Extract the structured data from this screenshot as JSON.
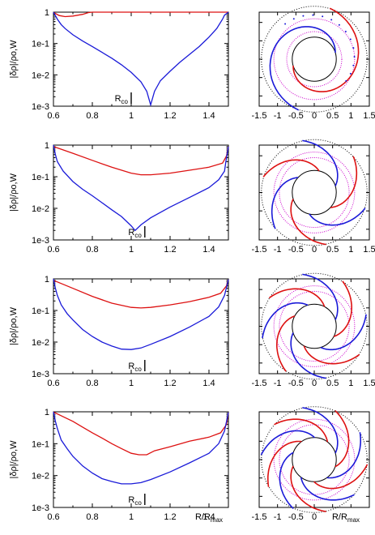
{
  "colors": {
    "red": "#dd1111",
    "blue": "#1a1ad8",
    "magenta": "#cc00cc",
    "black": "#000000",
    "axis": "#000000"
  },
  "chart_data": [
    {
      "type": "line",
      "row": 0,
      "ylabel": "|δρ|/ρo,W",
      "xlabel": "",
      "yscale": "log",
      "xlim": [
        0.6,
        1.5
      ],
      "ylim": [
        0.001,
        1
      ],
      "xticks": [
        "0.6",
        "0.8",
        "1",
        "1.2",
        "1.4"
      ],
      "yticks": [
        "1",
        "1e-1",
        "1e-2",
        "1e-3"
      ],
      "annotation": {
        "text": "R",
        "sub": "co",
        "x": 1.0
      },
      "series": [
        {
          "color": "red",
          "x": [
            0.6,
            0.63,
            0.66,
            0.7,
            0.75,
            0.78,
            0.8,
            0.85,
            0.9,
            1.0,
            1.1,
            1.2,
            1.3,
            1.4,
            1.5
          ],
          "y": [
            0.98,
            0.78,
            0.72,
            0.75,
            0.85,
            0.97,
            1.0,
            1.0,
            1.0,
            1.0,
            1.0,
            1.0,
            1.0,
            1.0,
            1.0
          ]
        },
        {
          "color": "blue",
          "x": [
            0.6,
            0.62,
            0.64,
            0.66,
            0.7,
            0.75,
            0.8,
            0.85,
            0.9,
            0.95,
            1.0,
            1.05,
            1.08,
            1.1,
            1.12,
            1.15,
            1.2,
            1.25,
            1.3,
            1.35,
            1.4,
            1.44,
            1.47,
            1.48,
            1.5
          ],
          "y": [
            1.0,
            0.6,
            0.4,
            0.3,
            0.19,
            0.12,
            0.08,
            0.052,
            0.034,
            0.021,
            0.012,
            0.006,
            0.003,
            0.0011,
            0.003,
            0.0065,
            0.013,
            0.025,
            0.045,
            0.08,
            0.16,
            0.3,
            0.6,
            0.8,
            1.0
          ]
        }
      ]
    },
    {
      "type": "line",
      "row": 1,
      "ylabel": "|δρ|/ρo,W",
      "xlabel": "",
      "yscale": "log",
      "xlim": [
        0.6,
        1.5
      ],
      "ylim": [
        0.001,
        1
      ],
      "xticks": [
        "0.6",
        "0.8",
        "1",
        "1.2",
        "1.4"
      ],
      "yticks": [
        "1",
        "1e-1",
        "1e-2",
        "1e-3"
      ],
      "annotation": {
        "text": "R",
        "sub": "co",
        "x": 1.07
      },
      "series": [
        {
          "color": "red",
          "x": [
            0.6,
            0.7,
            0.8,
            0.9,
            1.0,
            1.05,
            1.1,
            1.2,
            1.3,
            1.4,
            1.47,
            1.49,
            1.5
          ],
          "y": [
            0.9,
            0.55,
            0.33,
            0.2,
            0.13,
            0.115,
            0.115,
            0.13,
            0.16,
            0.2,
            0.27,
            0.45,
            0.9
          ]
        },
        {
          "color": "blue",
          "x": [
            0.6,
            0.61,
            0.62,
            0.65,
            0.7,
            0.75,
            0.8,
            0.85,
            0.9,
            0.95,
            1.0,
            1.02,
            1.05,
            1.1,
            1.2,
            1.3,
            1.4,
            1.45,
            1.48,
            1.49,
            1.5
          ],
          "y": [
            1.0,
            0.5,
            0.3,
            0.15,
            0.07,
            0.04,
            0.025,
            0.015,
            0.009,
            0.0055,
            0.0028,
            0.002,
            0.003,
            0.005,
            0.011,
            0.022,
            0.045,
            0.08,
            0.15,
            0.4,
            0.9
          ]
        }
      ]
    },
    {
      "type": "line",
      "row": 2,
      "ylabel": "|δρ|/ρo,W",
      "xlabel": "",
      "yscale": "log",
      "xlim": [
        0.6,
        1.5
      ],
      "ylim": [
        0.001,
        1
      ],
      "xticks": [
        "0.6",
        "0.8",
        "1",
        "1.2",
        "1.4"
      ],
      "yticks": [
        "1",
        "1e-1",
        "1e-2",
        "1e-3"
      ],
      "annotation": {
        "text": "R",
        "sub": "co",
        "x": 1.07
      },
      "series": [
        {
          "color": "red",
          "x": [
            0.6,
            0.7,
            0.8,
            0.9,
            1.0,
            1.05,
            1.1,
            1.2,
            1.3,
            1.4,
            1.46,
            1.49,
            1.5
          ],
          "y": [
            0.9,
            0.5,
            0.28,
            0.17,
            0.125,
            0.12,
            0.125,
            0.15,
            0.19,
            0.26,
            0.35,
            0.6,
            0.95
          ]
        },
        {
          "color": "blue",
          "x": [
            0.6,
            0.61,
            0.62,
            0.64,
            0.67,
            0.7,
            0.75,
            0.8,
            0.85,
            0.9,
            0.95,
            1.0,
            1.05,
            1.1,
            1.2,
            1.3,
            1.4,
            1.45,
            1.48,
            1.5
          ],
          "y": [
            1.0,
            0.5,
            0.3,
            0.15,
            0.08,
            0.05,
            0.025,
            0.015,
            0.01,
            0.0075,
            0.006,
            0.0058,
            0.0065,
            0.0085,
            0.015,
            0.03,
            0.065,
            0.13,
            0.3,
            0.95
          ]
        }
      ]
    },
    {
      "type": "line",
      "row": 3,
      "ylabel": "|δρ|/ρo,W",
      "xlabel": "R/Rmax",
      "yscale": "log",
      "xlim": [
        0.6,
        1.5
      ],
      "ylim": [
        0.001,
        1
      ],
      "xticks": [
        "0.6",
        "0.8",
        "1",
        "1.2",
        "1.4"
      ],
      "yticks": [
        "1",
        "1e-1",
        "1e-2",
        "1e-3"
      ],
      "annotation": {
        "text": "R",
        "sub": "co",
        "x": 1.07
      },
      "series": [
        {
          "color": "red",
          "x": [
            0.6,
            0.65,
            0.7,
            0.75,
            0.8,
            0.85,
            0.9,
            0.95,
            1.0,
            1.04,
            1.08,
            1.12,
            1.2,
            1.3,
            1.4,
            1.46,
            1.49,
            1.5
          ],
          "y": [
            0.98,
            0.7,
            0.5,
            0.33,
            0.22,
            0.15,
            0.1,
            0.07,
            0.05,
            0.045,
            0.045,
            0.06,
            0.08,
            0.12,
            0.16,
            0.22,
            0.4,
            0.95
          ]
        },
        {
          "color": "blue",
          "x": [
            0.6,
            0.61,
            0.62,
            0.64,
            0.67,
            0.7,
            0.75,
            0.8,
            0.85,
            0.9,
            0.95,
            1.0,
            1.05,
            1.1,
            1.2,
            1.3,
            1.4,
            1.45,
            1.48,
            1.5
          ],
          "y": [
            1.0,
            0.5,
            0.3,
            0.13,
            0.07,
            0.04,
            0.02,
            0.012,
            0.008,
            0.0065,
            0.0055,
            0.0055,
            0.006,
            0.0075,
            0.013,
            0.025,
            0.05,
            0.1,
            0.25,
            0.95
          ]
        }
      ]
    }
  ],
  "spiral_panels": {
    "xlabel": "R/Rmax",
    "xlim": [
      -1.5,
      1.5
    ],
    "xticks": [
      "-1.5",
      "-1",
      "-0.5",
      "0",
      "0.5",
      "1",
      "1.5"
    ],
    "rows": [
      {
        "arms": 1,
        "blue_arms": 1,
        "red_arms": 1,
        "twist": 2.2,
        "inner_r": 0.6,
        "outer_dotted_r": 1.5,
        "magenta_r": [
          0.75,
          1.1
        ],
        "dots": true
      },
      {
        "arms": 3,
        "blue_arms": 3,
        "red_arms": 3,
        "twist": 0.8,
        "inner_r": 0.6,
        "outer_dotted_r": 1.5,
        "magenta_r": [
          0.95,
          1.1
        ],
        "dots": false
      },
      {
        "arms": 4,
        "blue_arms": 4,
        "red_arms": 4,
        "twist": 0.8,
        "inner_r": 0.6,
        "outer_dotted_r": 1.5,
        "magenta_r": [
          0.95,
          1.1
        ],
        "dots": false
      },
      {
        "arms": 5,
        "blue_arms": 5,
        "red_arms": 5,
        "twist": 0.8,
        "inner_r": 0.6,
        "outer_dotted_r": 1.5,
        "magenta_r": [
          0.95,
          1.1
        ],
        "dots": false
      }
    ]
  }
}
